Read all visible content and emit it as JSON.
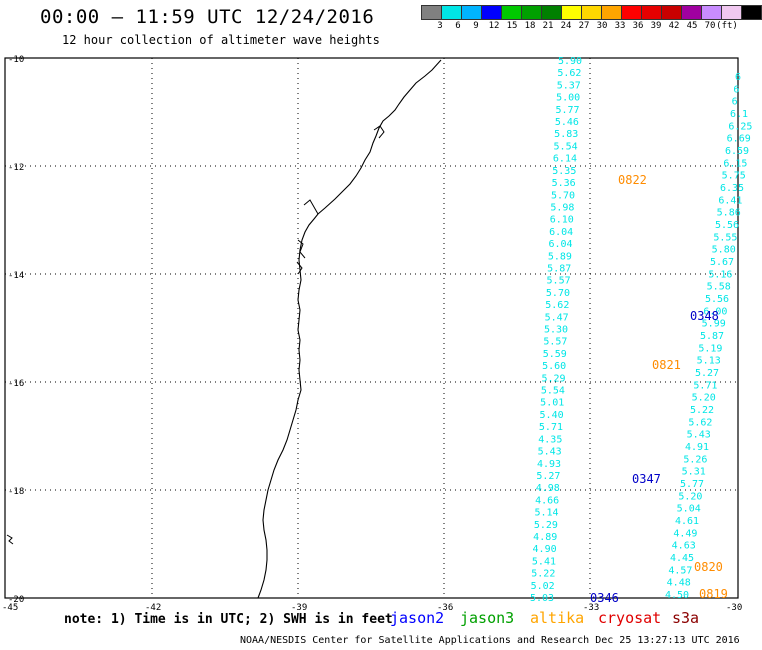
{
  "header": {
    "title": "00:00 – 11:59 UTC 12/24/2016",
    "subtitle": "12 hour collection of altimeter wave heights"
  },
  "colorbar": {
    "swatches": [
      "#808080",
      "#00e6e6",
      "#00b4ff",
      "#0000ff",
      "#00c800",
      "#00a000",
      "#008000",
      "#ffff00",
      "#ffd700",
      "#ffa500",
      "#ff0000",
      "#e60000",
      "#c80000",
      "#a000a0",
      "#c88cff",
      "#f0c8f0",
      "#000000"
    ],
    "labels": [
      "3",
      "6",
      "9",
      "12",
      "15",
      "18",
      "21",
      "24",
      "27",
      "30",
      "33",
      "36",
      "39",
      "42",
      "45",
      "70",
      "(ft)"
    ]
  },
  "map": {
    "lat_labels": [
      "-10",
      "-12",
      "-14",
      "-16",
      "-18",
      "-20"
    ],
    "lon_labels": [
      "-45",
      "-42",
      "-39",
      "-36",
      "-33",
      "-30"
    ],
    "track_color": "#00e6e6",
    "track_a_values": [
      "5.90",
      "5.62",
      "5.37",
      "5.00",
      "5.77",
      "5.46",
      "5.83",
      "5.54",
      "6.14",
      "5.35",
      "5.36",
      "5.70",
      "5.98",
      "6.10",
      "6.04",
      "6.04",
      "5.89",
      "5.87",
      "5.57",
      "5.70",
      "5.62",
      "5.47",
      "5.30",
      "5.57",
      "5.59",
      "5.60",
      "5.29",
      "5.54",
      "5.01",
      "5.40",
      "5.71",
      "4.35",
      "5.43",
      "4.93",
      "5.27",
      "4.98",
      "4.66",
      "5.14",
      "5.29",
      "4.89",
      "4.90",
      "5.41",
      "5.22",
      "5.02",
      "5.03"
    ],
    "track_b_values": [
      "6",
      "6",
      "6",
      "6.1",
      "6.25",
      "6.69",
      "6.59",
      "6.15",
      "5.75",
      "6.35",
      "6.41",
      "5.86",
      "5.56",
      "5.55",
      "5.80",
      "5.67",
      "5.16",
      "5.58",
      "5.56",
      "6.00",
      "5.99",
      "5.87",
      "5.19",
      "5.13",
      "5.27",
      "5.71",
      "5.20",
      "5.22",
      "5.62",
      "5.43",
      "4.91",
      "5.26",
      "5.31",
      "5.77",
      "5.20",
      "5.04",
      "4.61",
      "4.49",
      "4.63",
      "4.45",
      "4.57",
      "4.48",
      "4.50"
    ],
    "time_labels": [
      {
        "text": "0822",
        "color": "#ff8c00"
      },
      {
        "text": "0348",
        "color": "#0000c8"
      },
      {
        "text": "0821",
        "color": "#ff8c00"
      },
      {
        "text": "0347",
        "color": "#0000c8"
      },
      {
        "text": "0820",
        "color": "#ff8c00"
      },
      {
        "text": "0819",
        "color": "#ff8c00"
      },
      {
        "text": "0346",
        "color": "#0000c8"
      }
    ]
  },
  "footer": {
    "note": "note: 1) Time is in UTC; 2) SWH is in feet",
    "missions": [
      {
        "name": "jason2",
        "color": "#0000ff"
      },
      {
        "name": "jason3",
        "color": "#00a000"
      },
      {
        "name": "altika",
        "color": "#ffa500"
      },
      {
        "name": "cryosat",
        "color": "#e00000"
      },
      {
        "name": "s3a",
        "color": "#8b0000"
      }
    ],
    "credit": "NOAA/NESDIS Center for Satellite Applications and Research   Dec 25 13:27:13 UTC 2016"
  }
}
